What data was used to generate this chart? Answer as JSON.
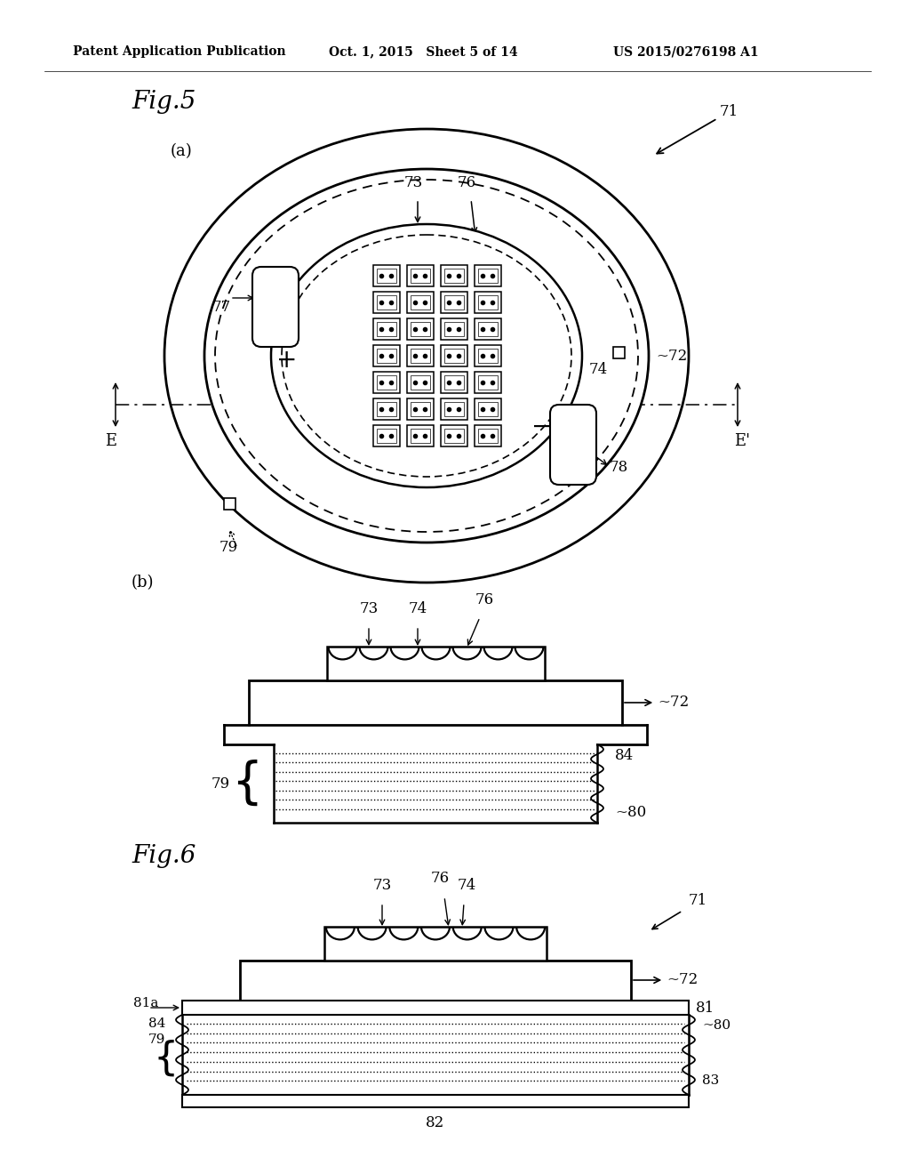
{
  "header_left": "Patent Application Publication",
  "header_mid": "Oct. 1, 2015   Sheet 5 of 14",
  "header_right": "US 2015/0276198 A1",
  "fig5_title": "Fig.5",
  "fig6_title": "Fig.6",
  "bg_color": "#ffffff",
  "line_color": "#000000"
}
